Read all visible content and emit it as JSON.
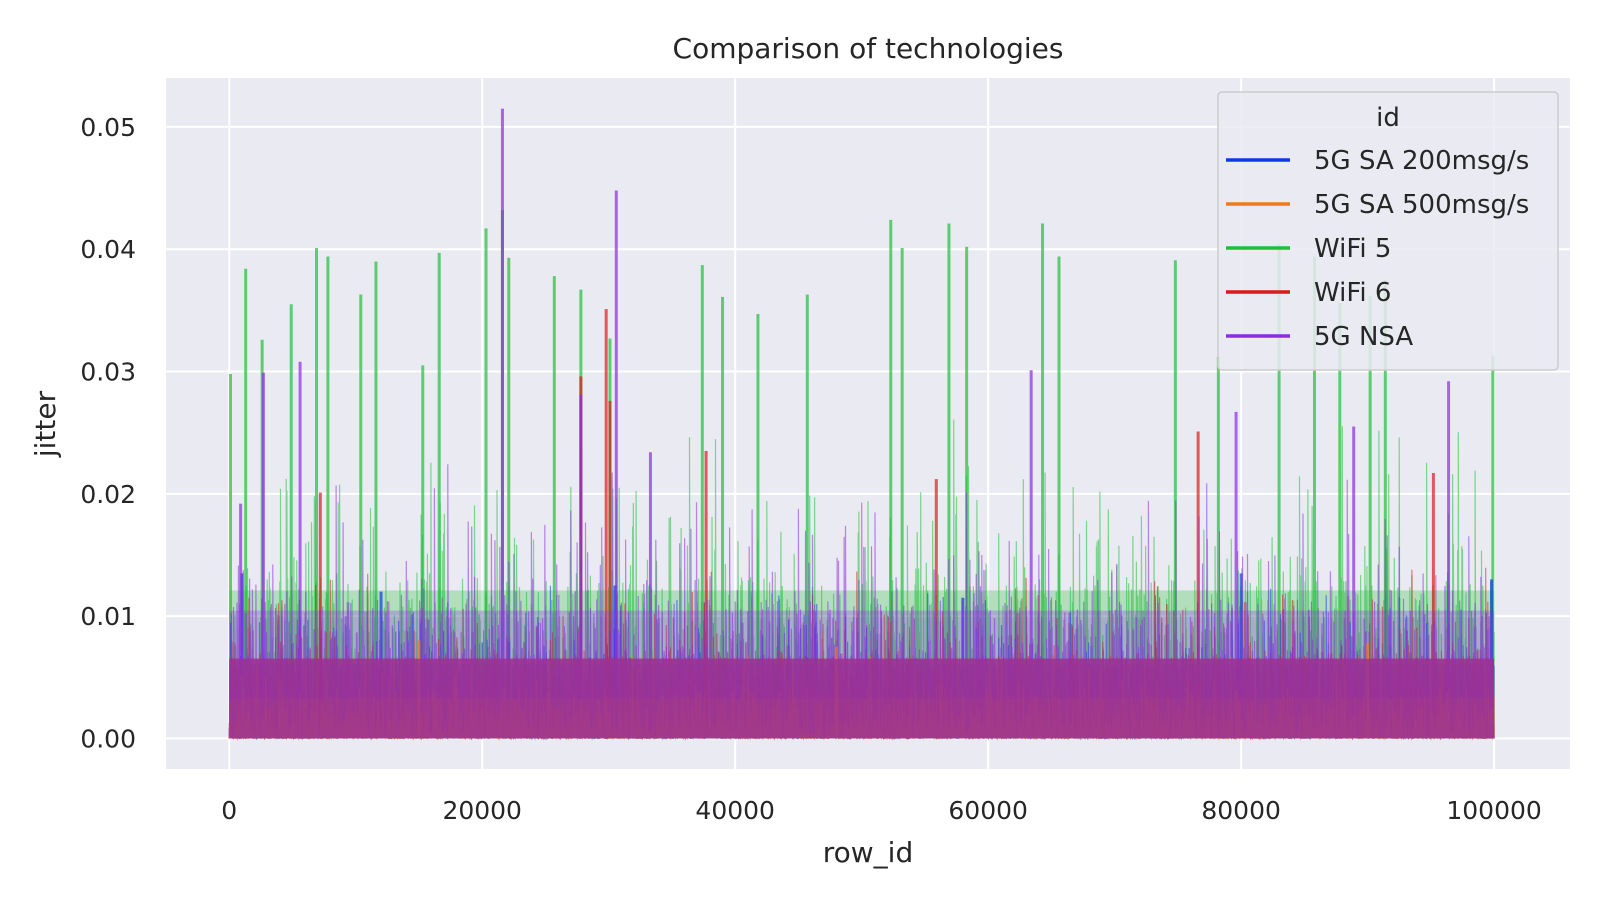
{
  "chart_data": {
    "type": "line",
    "title": "Comparison of technologies",
    "xlabel": "row_id",
    "ylabel": "jitter",
    "xlim": [
      -5000,
      106000
    ],
    "ylim": [
      -0.0025,
      0.054
    ],
    "x_ticks": [
      0,
      20000,
      40000,
      60000,
      80000,
      100000
    ],
    "x_tick_labels": [
      "0",
      "20000",
      "40000",
      "60000",
      "80000",
      "100000"
    ],
    "y_ticks": [
      0.0,
      0.01,
      0.02,
      0.03,
      0.04,
      0.05
    ],
    "y_tick_labels": [
      "0.00",
      "0.01",
      "0.02",
      "0.03",
      "0.04",
      "0.05"
    ],
    "grid": true,
    "legend": {
      "title": "id",
      "position": "top-right"
    },
    "x_range": [
      0,
      100000
    ],
    "series": [
      {
        "name": "5G SA 200msg/s",
        "color": "#0d3ae6",
        "typical_max": 0.011,
        "peaks": [
          [
            1000,
            0.0135
          ],
          [
            12000,
            0.012
          ],
          [
            30500,
            0.0125
          ],
          [
            58000,
            0.0115
          ],
          [
            80000,
            0.0135
          ],
          [
            99800,
            0.013
          ]
        ]
      },
      {
        "name": "5G SA 500msg/s",
        "color": "#f07a1a",
        "typical_max": 0.006,
        "peaks": [
          [
            15000,
            0.008
          ],
          [
            48000,
            0.0075
          ],
          [
            90000,
            0.0078
          ]
        ]
      },
      {
        "name": "WiFi 5",
        "color": "#1fbf3a",
        "typical_max": 0.022,
        "peaks": [
          [
            100,
            0.0298
          ],
          [
            1300,
            0.0384
          ],
          [
            2600,
            0.0326
          ],
          [
            4900,
            0.0355
          ],
          [
            6900,
            0.0401
          ],
          [
            7800,
            0.0394
          ],
          [
            10400,
            0.0363
          ],
          [
            11600,
            0.039
          ],
          [
            15300,
            0.0305
          ],
          [
            16600,
            0.0397
          ],
          [
            20300,
            0.0417
          ],
          [
            21600,
            0.0432
          ],
          [
            22100,
            0.0393
          ],
          [
            25700,
            0.0378
          ],
          [
            27800,
            0.0367
          ],
          [
            30100,
            0.0327
          ],
          [
            37400,
            0.0387
          ],
          [
            39000,
            0.0361
          ],
          [
            41800,
            0.0347
          ],
          [
            45700,
            0.0363
          ],
          [
            52300,
            0.0424
          ],
          [
            53200,
            0.0401
          ],
          [
            56900,
            0.0421
          ],
          [
            58300,
            0.0402
          ],
          [
            64300,
            0.0421
          ],
          [
            65600,
            0.0394
          ],
          [
            74800,
            0.0391
          ],
          [
            78200,
            0.0312
          ],
          [
            83000,
            0.0404
          ],
          [
            85800,
            0.0394
          ],
          [
            87800,
            0.0356
          ],
          [
            90200,
            0.0362
          ],
          [
            91400,
            0.0375
          ],
          [
            99900,
            0.0313
          ]
        ]
      },
      {
        "name": "WiFi 6",
        "color": "#d81b1b",
        "typical_max": 0.012,
        "peaks": [
          [
            7200,
            0.0201
          ],
          [
            27800,
            0.0296
          ],
          [
            29800,
            0.0351
          ],
          [
            30100,
            0.0276
          ],
          [
            37700,
            0.0235
          ],
          [
            55900,
            0.0212
          ],
          [
            76600,
            0.0251
          ],
          [
            95200,
            0.0217
          ]
        ]
      },
      {
        "name": "5G NSA",
        "color": "#8b2be2",
        "typical_max": 0.019,
        "peaks": [
          [
            900,
            0.0192
          ],
          [
            2700,
            0.0299
          ],
          [
            5600,
            0.0308
          ],
          [
            21600,
            0.0515
          ],
          [
            27800,
            0.0281
          ],
          [
            30600,
            0.0448
          ],
          [
            33300,
            0.0234
          ],
          [
            63400,
            0.0301
          ],
          [
            79600,
            0.0267
          ],
          [
            88900,
            0.0255
          ],
          [
            96400,
            0.0292
          ]
        ]
      }
    ]
  }
}
